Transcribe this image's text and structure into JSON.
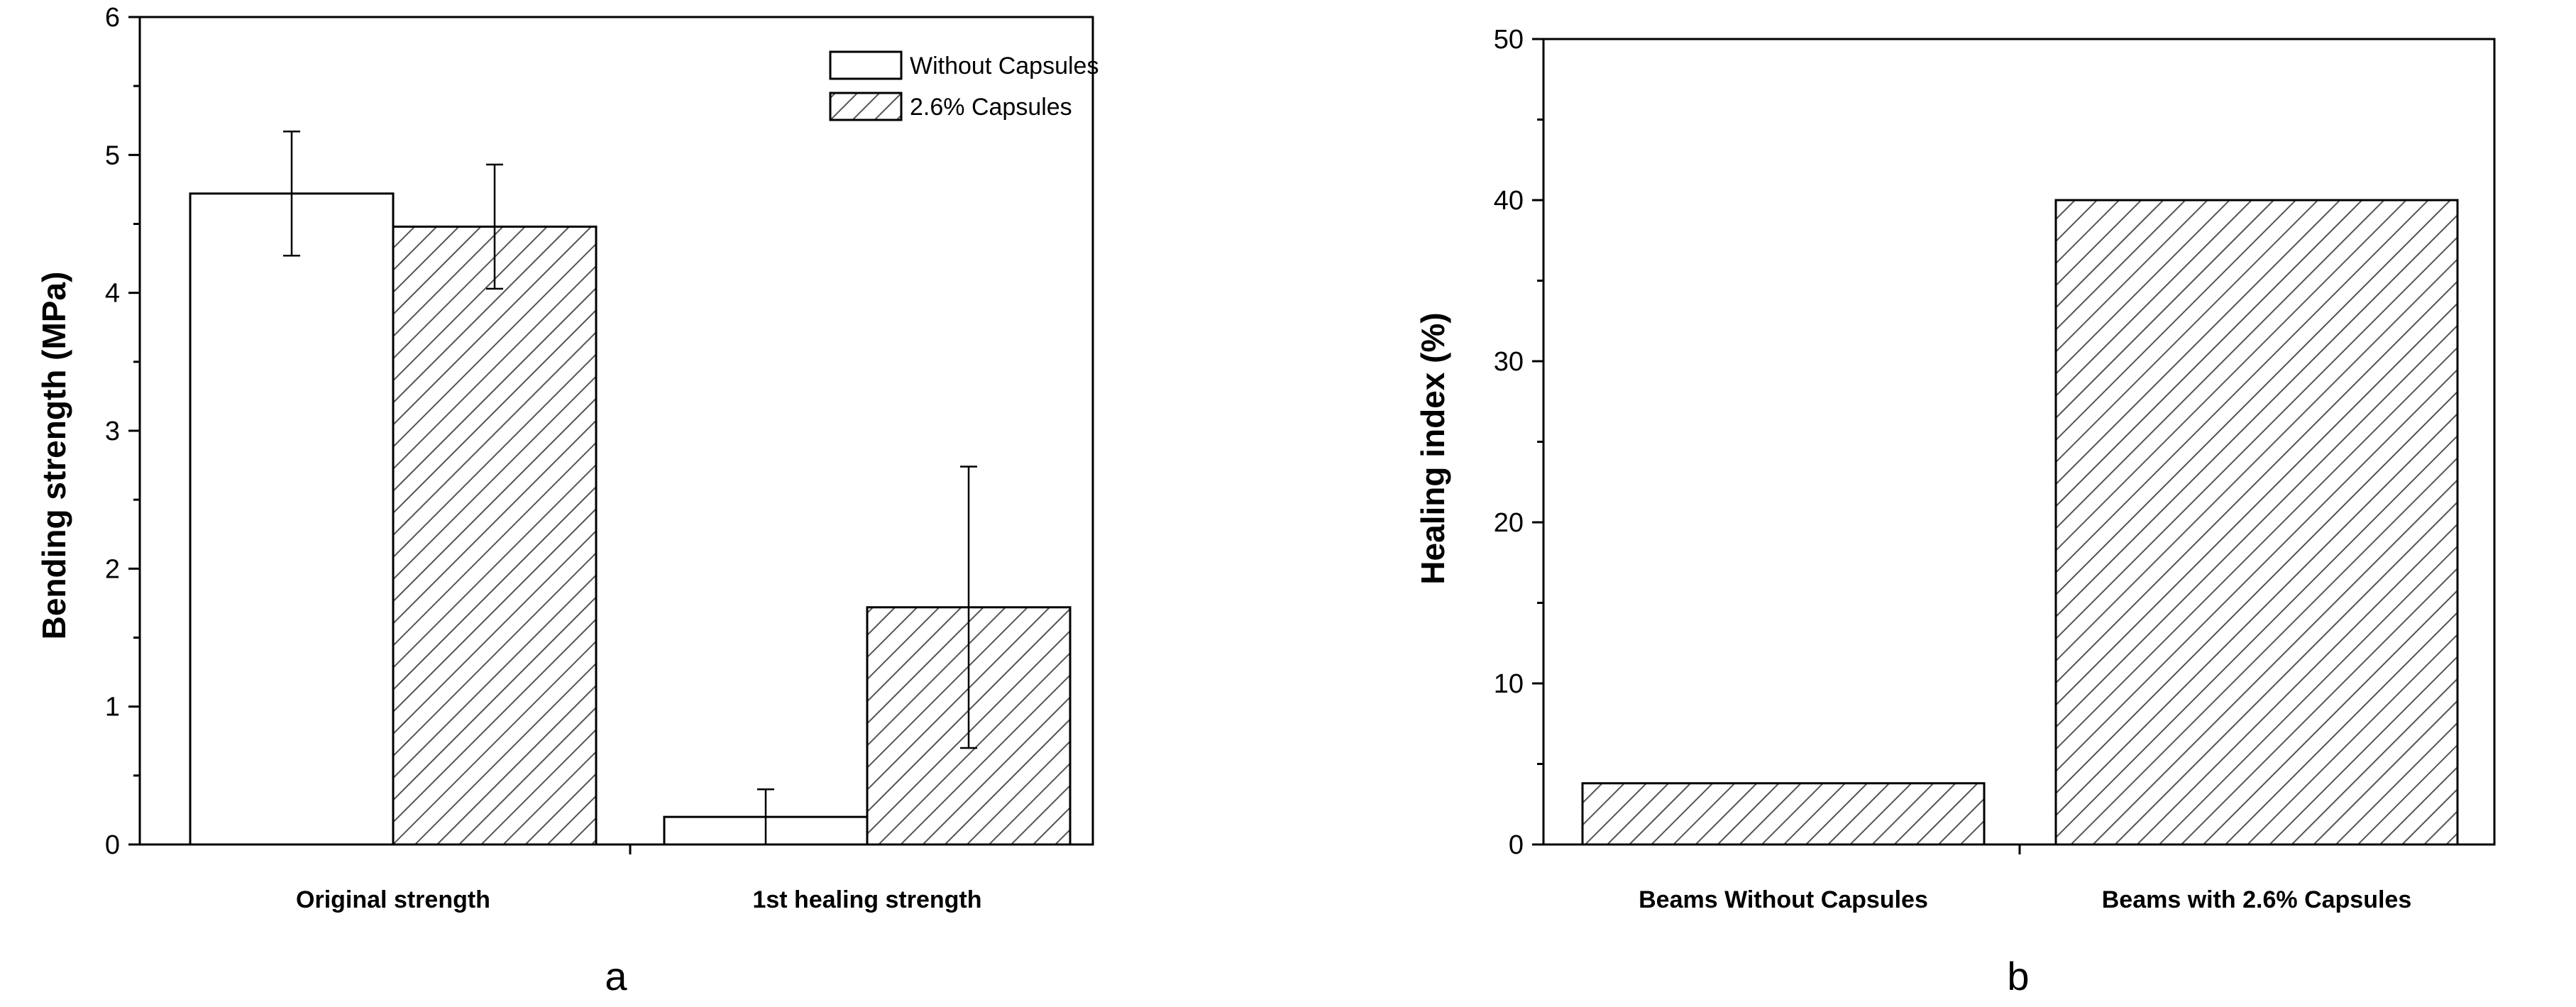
{
  "chart_data": [
    {
      "type": "bar",
      "panel_label": "a",
      "title": "",
      "xlabel": "",
      "ylabel": "Bending strength (MPa)",
      "ylim": [
        0,
        6
      ],
      "yticks": [
        "0",
        "1",
        "2",
        "3",
        "4",
        "5",
        "6"
      ],
      "grid": false,
      "legend_position": "top-right",
      "categories": [
        "Original strength",
        "1st healing strength"
      ],
      "series": [
        {
          "name": "Without Capsules",
          "fill": "plain",
          "values": [
            4.72,
            0.2
          ],
          "errors": [
            0.45,
            0.2
          ]
        },
        {
          "name": "2.6% Capsules",
          "fill": "hatched",
          "values": [
            4.48,
            1.72
          ],
          "errors": [
            0.45,
            1.02
          ]
        }
      ]
    },
    {
      "type": "bar",
      "panel_label": "b",
      "title": "",
      "xlabel": "",
      "ylabel": "Healing index (%)",
      "ylim": [
        0,
        50
      ],
      "yticks": [
        "0",
        "10",
        "20",
        "30",
        "40",
        "50"
      ],
      "grid": false,
      "categories": [
        "Beams Without Capsules",
        "Beams with 2.6% Capsules"
      ],
      "series": [
        {
          "name": "Healing index",
          "fill": "hatched",
          "values": [
            3.8,
            40
          ]
        }
      ]
    }
  ],
  "colors": {
    "axis": "#000000",
    "bar_fill": "#ffffff",
    "hatch": "#555555"
  }
}
